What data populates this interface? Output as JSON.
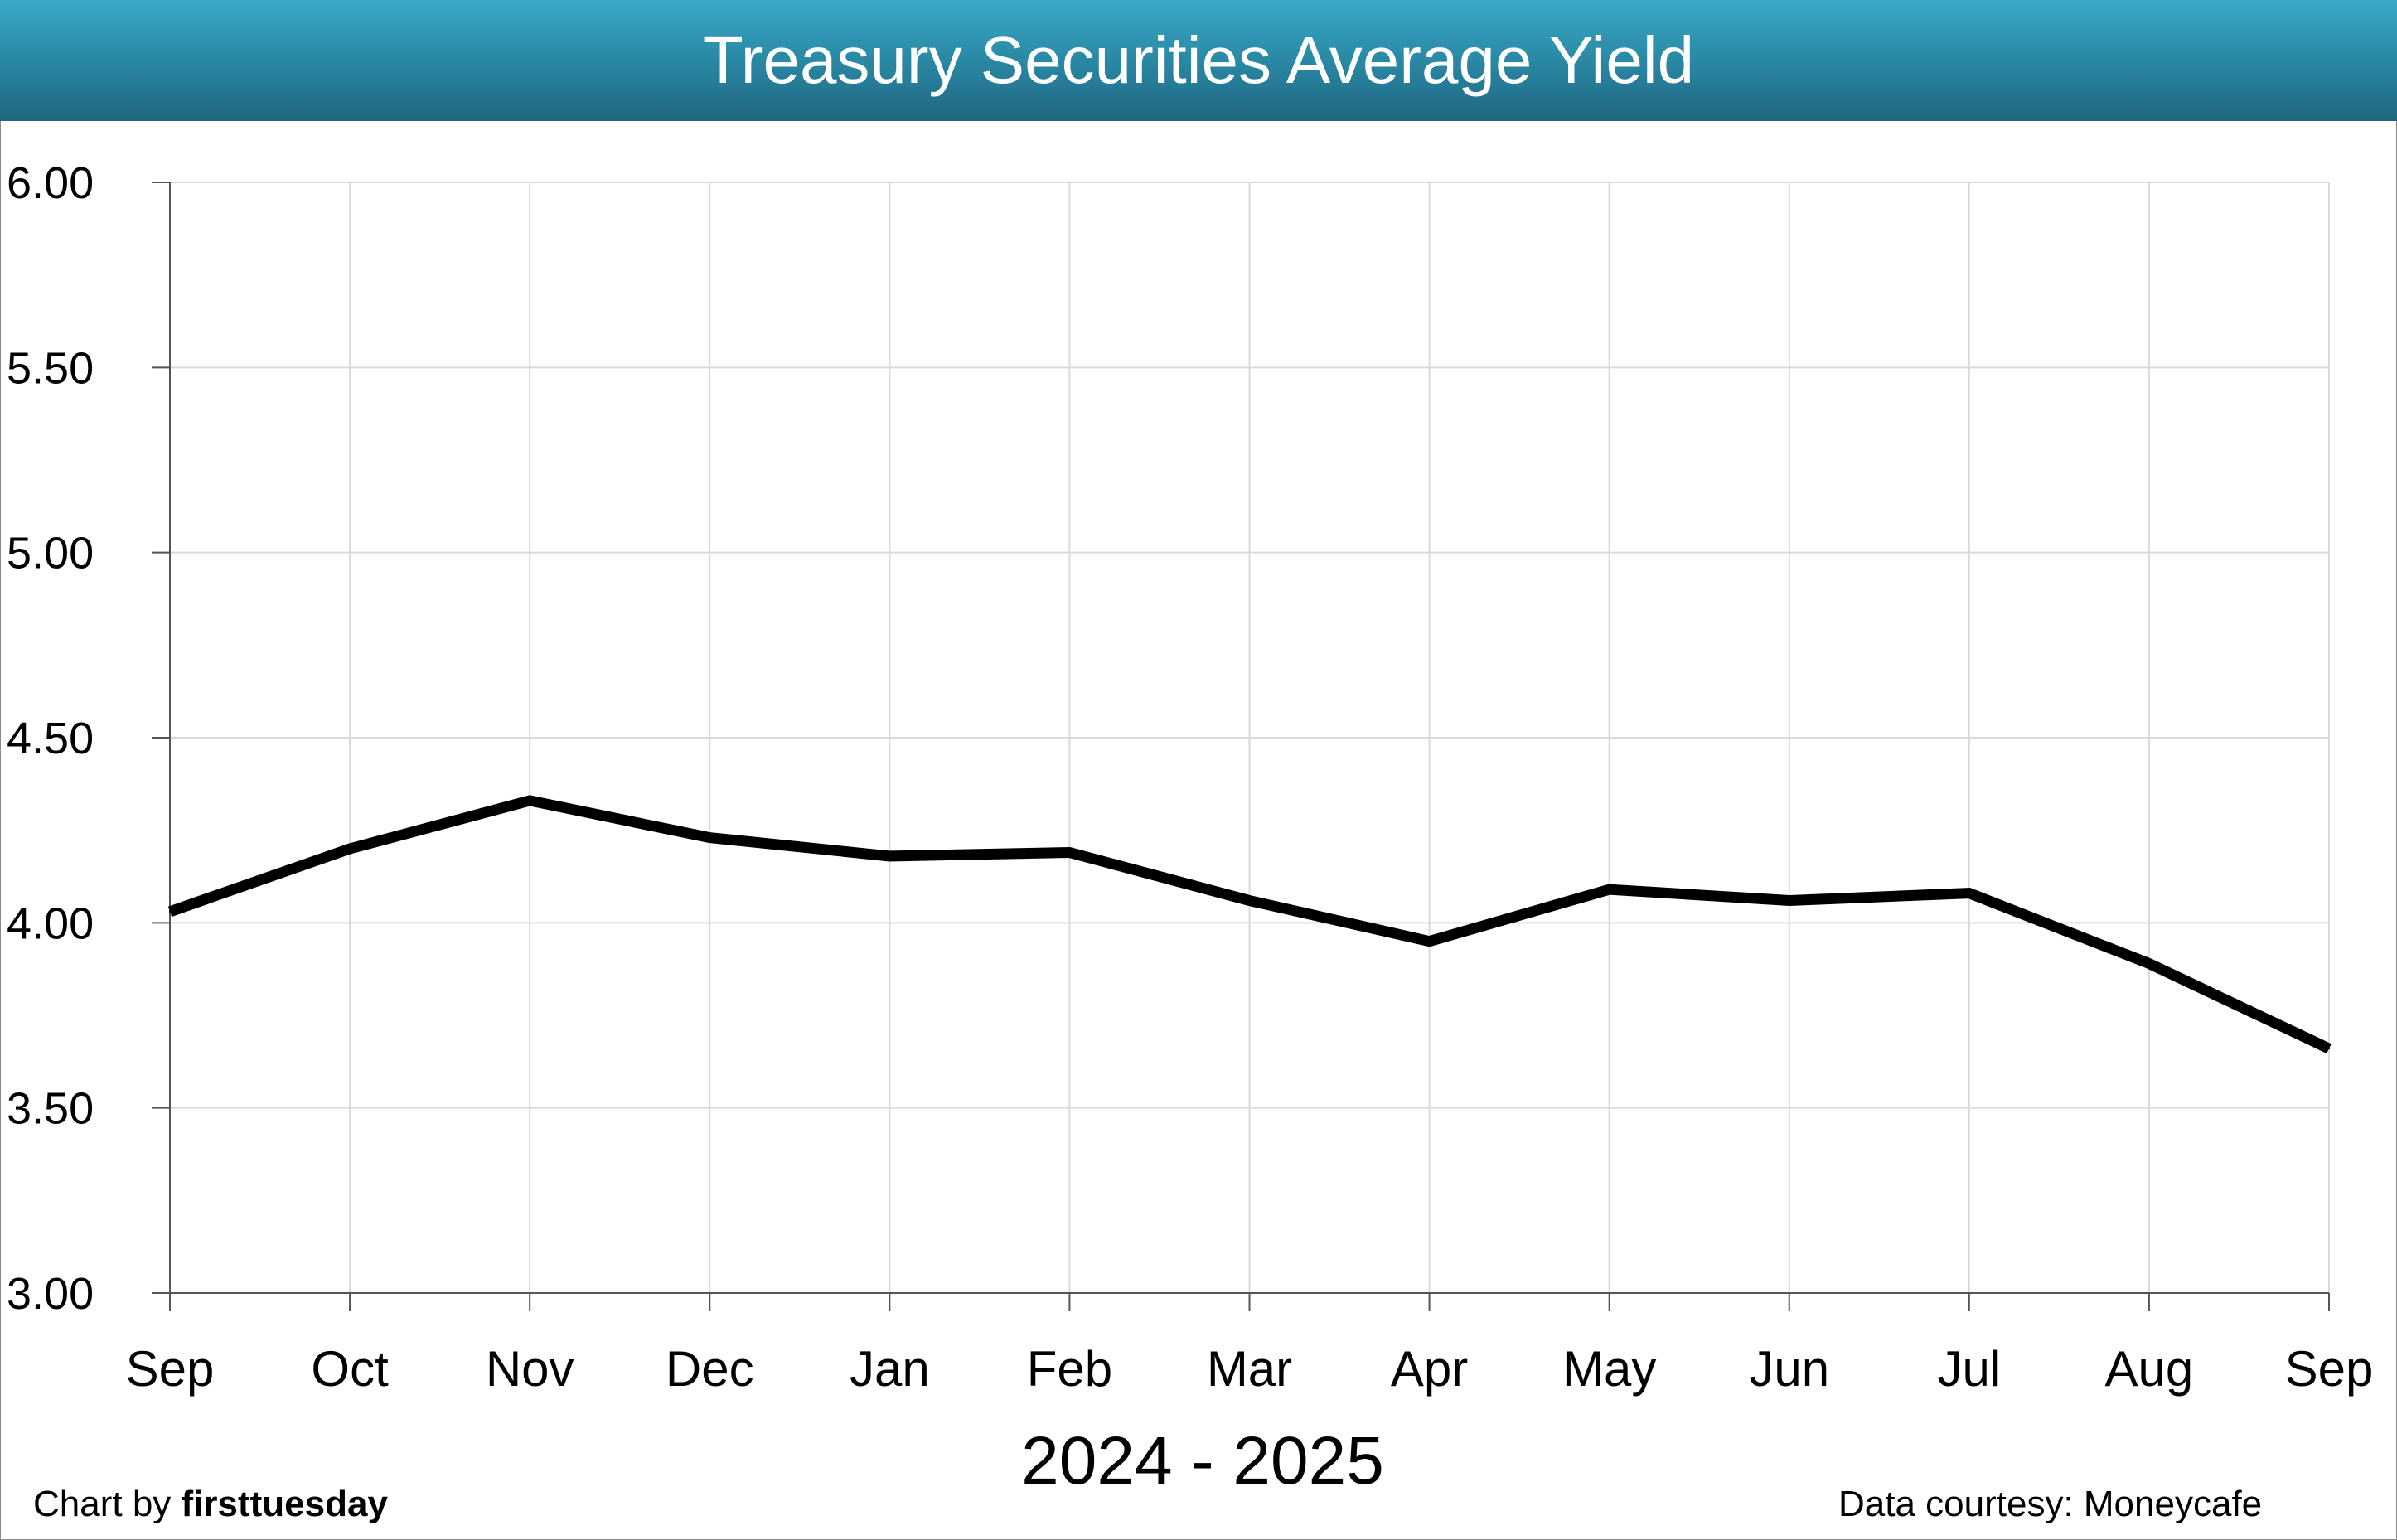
{
  "chart_data": {
    "type": "line",
    "title": "Treasury Securities Average Yield",
    "xlabel": "2024 - 2025",
    "ylabel": "",
    "categories": [
      "Sep",
      "Oct",
      "Nov",
      "Dec",
      "Jan",
      "Feb",
      "Mar",
      "Apr",
      "May",
      "Jun",
      "Jul",
      "Aug",
      "Sep"
    ],
    "series": [
      {
        "values": [
          4.03,
          4.2,
          4.33,
          4.23,
          4.18,
          4.19,
          4.06,
          3.95,
          4.09,
          4.06,
          4.08,
          3.89,
          3.66
        ]
      }
    ],
    "ylim": [
      3.0,
      6.0
    ],
    "yticks": [
      "3.00",
      "3.50",
      "4.00",
      "4.50",
      "5.00",
      "5.50",
      "6.00"
    ],
    "grid": true,
    "line_color": "#000000",
    "header_color": "#2b8ca8"
  },
  "footer": {
    "chart_by_prefix": "Chart by ",
    "chart_by_name": "firsttuesday",
    "data_source": "Data courtesy: Moneycafe"
  }
}
